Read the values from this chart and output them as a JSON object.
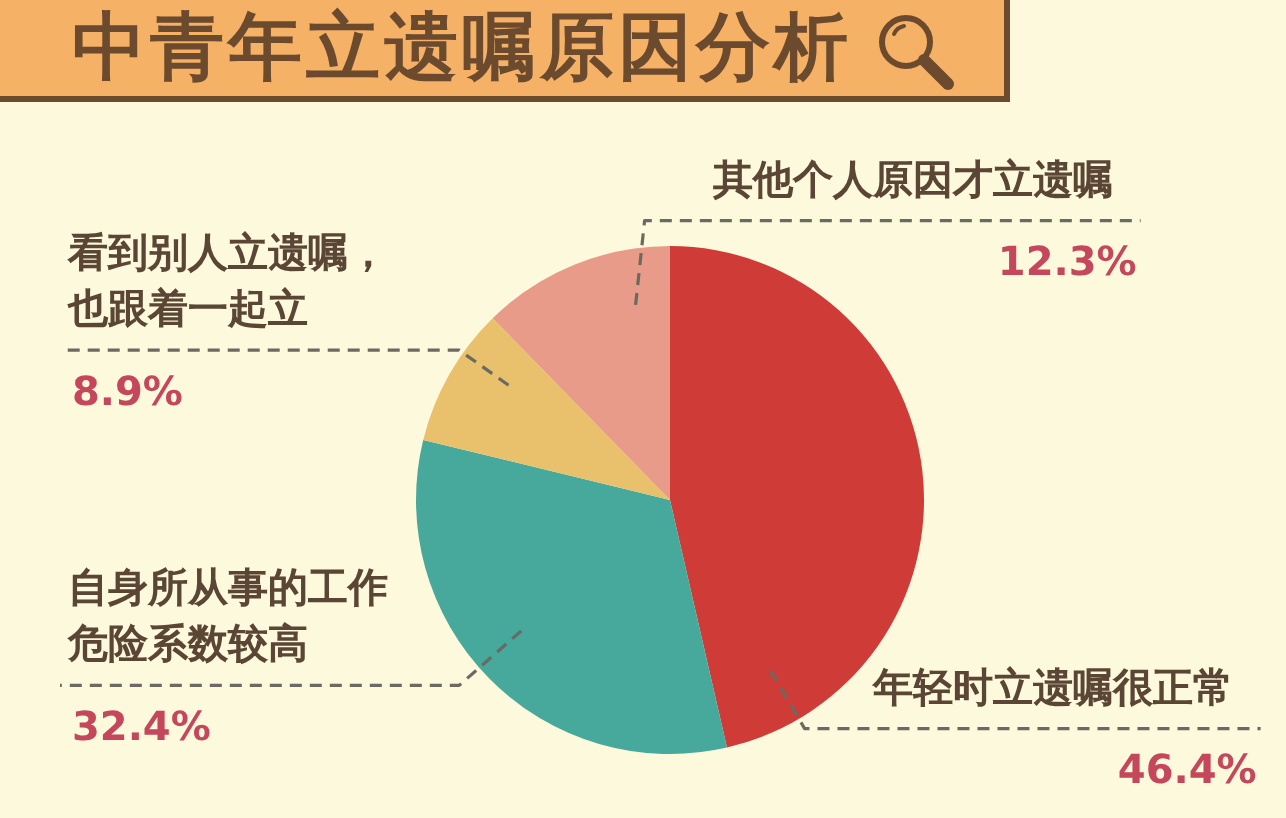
{
  "chart_data": {
    "type": "pie",
    "title": "中青年立遗嘱原因分析",
    "categories": [
      "年轻时立遗嘱很正常",
      "自身所从事的工作危险系数较高",
      "看到别人立遗嘱，也跟着一起立",
      "其他个人原因才立遗嘱"
    ],
    "values": [
      46.4,
      32.4,
      8.9,
      12.3
    ],
    "colors": [
      "#cf3b36",
      "#46a99b",
      "#e9c16c",
      "#e99b89"
    ],
    "value_labels": [
      "46.4%",
      "32.4%",
      "8.9%",
      "12.3%"
    ]
  }
}
